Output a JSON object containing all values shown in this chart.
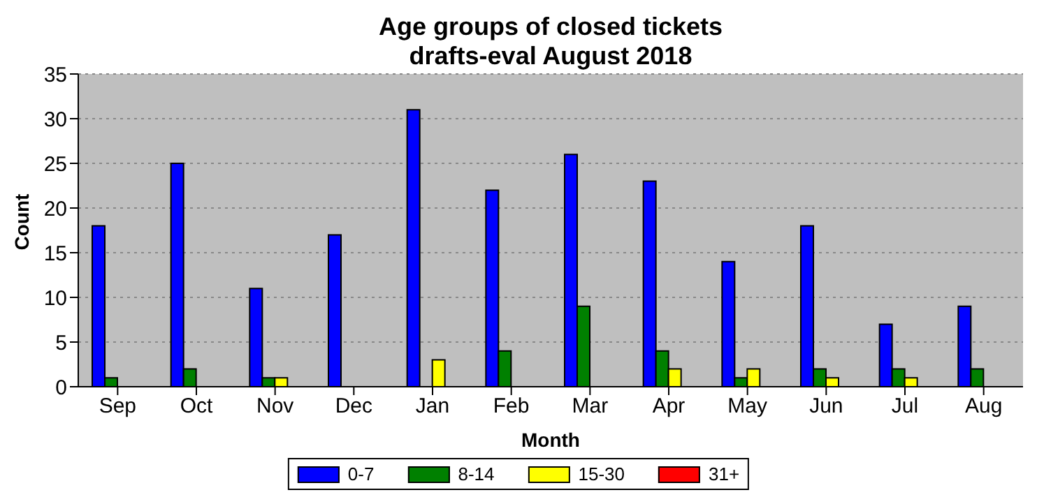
{
  "chart_data": {
    "type": "bar",
    "title": "Age groups of closed tickets\ndrafts-eval August 2018",
    "xlabel": "Month",
    "ylabel": "Count",
    "categories": [
      "Sep",
      "Oct",
      "Nov",
      "Dec",
      "Jan",
      "Feb",
      "Mar",
      "Apr",
      "May",
      "Jun",
      "Jul",
      "Aug"
    ],
    "series": [
      {
        "name": "0-7",
        "color": "#0000ff",
        "values": [
          18,
          25,
          11,
          17,
          31,
          22,
          26,
          23,
          14,
          18,
          7,
          9
        ]
      },
      {
        "name": "8-14",
        "color": "#008000",
        "values": [
          1,
          2,
          1,
          0,
          0,
          4,
          9,
          4,
          1,
          2,
          2,
          2
        ]
      },
      {
        "name": "15-30",
        "color": "#ffff00",
        "values": [
          0,
          0,
          1,
          0,
          3,
          0,
          0,
          2,
          2,
          1,
          1,
          0
        ]
      },
      {
        "name": "31+",
        "color": "#ff0000",
        "values": [
          0,
          0,
          0,
          0,
          0,
          0,
          0,
          0,
          0,
          0,
          0,
          0
        ]
      }
    ],
    "ylim": [
      0,
      35
    ],
    "yticks": [
      0,
      5,
      10,
      15,
      20,
      25,
      30,
      35
    ],
    "grid": "y",
    "legend": "bottom"
  }
}
